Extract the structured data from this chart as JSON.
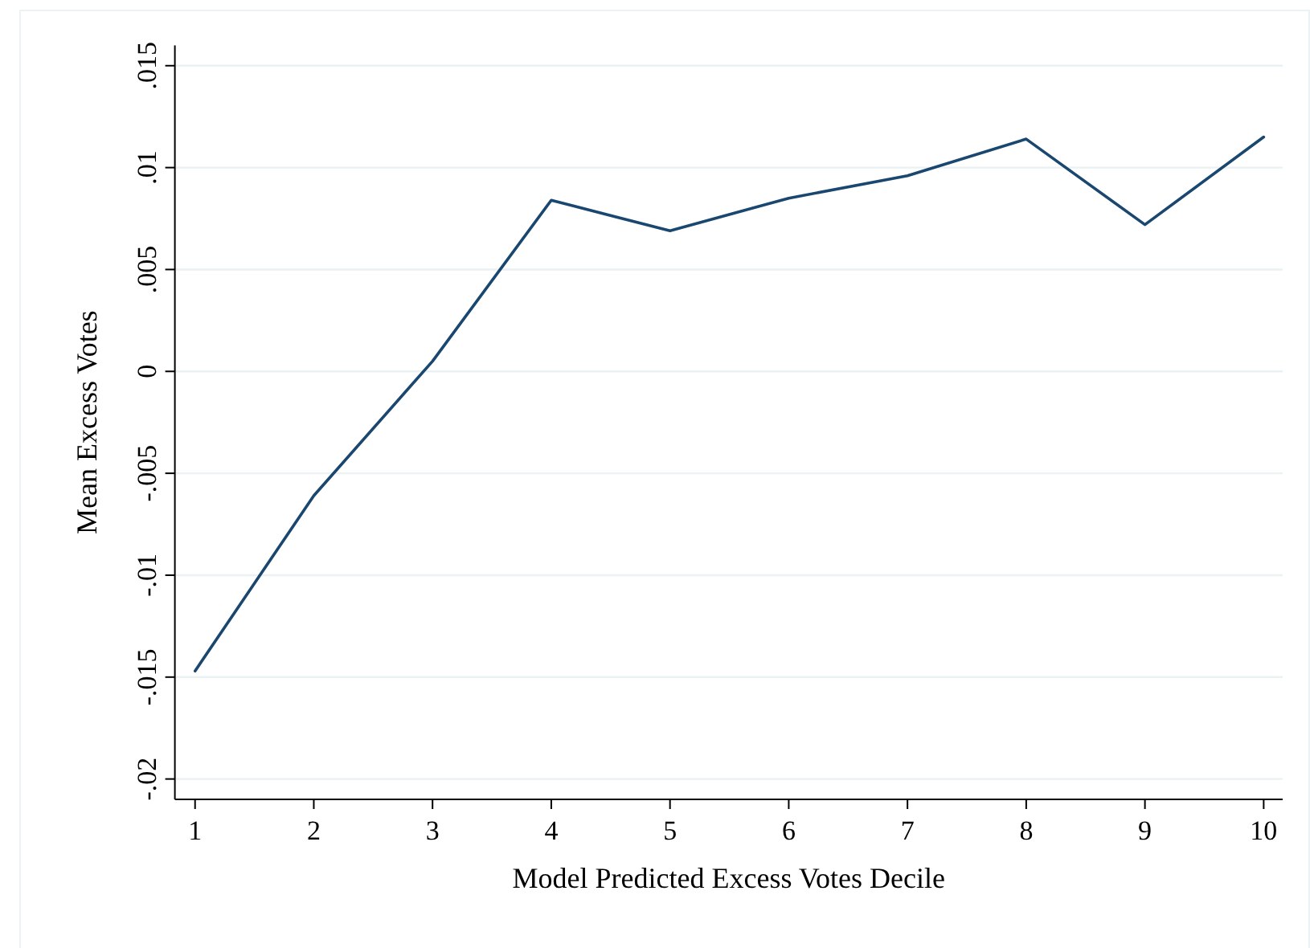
{
  "chart_data": {
    "type": "line",
    "xlabel": "Model Predicted Excess Votes Decile",
    "ylabel": "Mean Excess Votes",
    "x": [
      1,
      2,
      3,
      4,
      5,
      6,
      7,
      8,
      9,
      10
    ],
    "series": [
      {
        "color": "#1a476f",
        "values": [
          -0.0147,
          -0.0061,
          0.0005,
          0.0084,
          0.0069,
          0.0085,
          0.0096,
          0.0114,
          0.0072,
          0.0115
        ]
      }
    ],
    "xlim": [
      0.83,
      10.16
    ],
    "xticks": [
      1,
      2,
      3,
      4,
      5,
      6,
      7,
      8,
      9,
      10
    ],
    "ylim": [
      -0.021,
      0.016
    ],
    "yticks": [
      {
        "value": -0.02,
        "label": "-.02"
      },
      {
        "value": -0.015,
        "label": "-.015"
      },
      {
        "value": -0.01,
        "label": "-.01"
      },
      {
        "value": -0.005,
        "label": "-.005"
      },
      {
        "value": 0,
        "label": "0"
      },
      {
        "value": 0.005,
        "label": ".005"
      },
      {
        "value": 0.01,
        "label": ".01"
      },
      {
        "value": 0.015,
        "label": ".015"
      }
    ],
    "grid": "y",
    "marker": "none",
    "line_style": "solid"
  }
}
